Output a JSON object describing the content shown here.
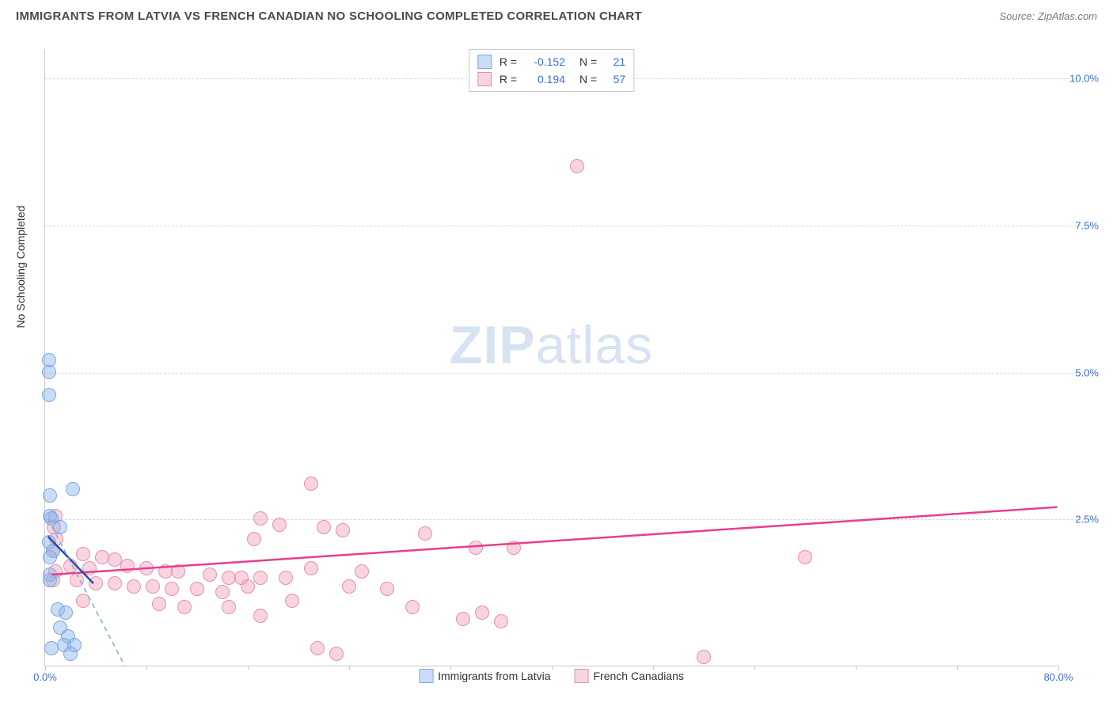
{
  "header": {
    "title": "IMMIGRANTS FROM LATVIA VS FRENCH CANADIAN NO SCHOOLING COMPLETED CORRELATION CHART",
    "source": "Source: ZipAtlas.com"
  },
  "watermark": {
    "part1": "ZIP",
    "part2": "atlas"
  },
  "chart": {
    "type": "scatter",
    "ylabel": "No Schooling Completed",
    "xlim": [
      0,
      80
    ],
    "ylim": [
      0,
      10.5
    ],
    "xtick_positions": [
      0,
      8,
      16,
      24,
      32,
      40,
      48,
      56,
      64,
      72,
      80
    ],
    "xtick_labels": {
      "0": "0.0%",
      "80": "80.0%"
    },
    "ytick_positions": [
      2.5,
      5.0,
      7.5,
      10.0
    ],
    "ytick_labels": [
      "2.5%",
      "5.0%",
      "7.5%",
      "10.0%"
    ],
    "grid_color": "#d8d8d8",
    "axis_color": "#c9c9c9",
    "background_color": "#ffffff",
    "tick_label_color": "#3b6fd6",
    "marker_radius": 9,
    "series": {
      "latvia": {
        "label": "Immigrants from Latvia",
        "fill": "rgba(140,180,235,0.45)",
        "stroke": "#7aa9e0",
        "line_color": "#1f4fb0",
        "dash_color": "#7aa9e0",
        "r_value": "-0.152",
        "n_value": "21",
        "trendline": {
          "x1": 0.2,
          "y1": 2.2,
          "x2": 3.8,
          "y2": 1.4
        },
        "dashline": {
          "x1": 0.2,
          "y1": 2.5,
          "x2": 7,
          "y2": -0.3
        },
        "points": [
          [
            0.3,
            5.2
          ],
          [
            0.3,
            5.0
          ],
          [
            0.3,
            4.6
          ],
          [
            2.2,
            3.0
          ],
          [
            0.4,
            2.9
          ],
          [
            0.4,
            2.55
          ],
          [
            0.5,
            2.5
          ],
          [
            1.2,
            2.35
          ],
          [
            0.3,
            2.1
          ],
          [
            0.6,
            1.95
          ],
          [
            0.4,
            1.85
          ],
          [
            0.4,
            1.55
          ],
          [
            0.35,
            1.45
          ],
          [
            1.0,
            0.95
          ],
          [
            1.6,
            0.9
          ],
          [
            1.2,
            0.65
          ],
          [
            1.8,
            0.5
          ],
          [
            1.5,
            0.35
          ],
          [
            2.3,
            0.35
          ],
          [
            2.0,
            0.2
          ],
          [
            0.5,
            0.3
          ]
        ]
      },
      "french": {
        "label": "French Canadians",
        "fill": "rgba(240,160,185,0.45)",
        "stroke": "#e78fae",
        "line_color": "#e83e8c",
        "r_value": "0.194",
        "n_value": "57",
        "trendline": {
          "x1": 0.5,
          "y1": 1.55,
          "x2": 80,
          "y2": 2.7
        },
        "points": [
          [
            42,
            8.5
          ],
          [
            21,
            3.1
          ],
          [
            0.8,
            2.55
          ],
          [
            17,
            2.5
          ],
          [
            18.5,
            2.4
          ],
          [
            22,
            2.35
          ],
          [
            23.5,
            2.3
          ],
          [
            30,
            2.25
          ],
          [
            16.5,
            2.15
          ],
          [
            0.9,
            2.15
          ],
          [
            0.6,
            1.95
          ],
          [
            3,
            1.9
          ],
          [
            4.5,
            1.85
          ],
          [
            5.5,
            1.8
          ],
          [
            34,
            2.0
          ],
          [
            60,
            1.85
          ],
          [
            2,
            1.7
          ],
          [
            3.5,
            1.65
          ],
          [
            6.5,
            1.7
          ],
          [
            8,
            1.65
          ],
          [
            9.5,
            1.6
          ],
          [
            10.5,
            1.6
          ],
          [
            13,
            1.55
          ],
          [
            14.5,
            1.5
          ],
          [
            15.5,
            1.5
          ],
          [
            17,
            1.5
          ],
          [
            19,
            1.5
          ],
          [
            21,
            1.65
          ],
          [
            25,
            1.6
          ],
          [
            2.5,
            1.45
          ],
          [
            4,
            1.4
          ],
          [
            5.5,
            1.4
          ],
          [
            7,
            1.35
          ],
          [
            8.5,
            1.35
          ],
          [
            10,
            1.3
          ],
          [
            12,
            1.3
          ],
          [
            14,
            1.25
          ],
          [
            16,
            1.35
          ],
          [
            24,
            1.35
          ],
          [
            27,
            1.3
          ],
          [
            37,
            2.0
          ],
          [
            3,
            1.1
          ],
          [
            9,
            1.05
          ],
          [
            11,
            1.0
          ],
          [
            14.5,
            1.0
          ],
          [
            17,
            0.85
          ],
          [
            19.5,
            1.1
          ],
          [
            29,
            1.0
          ],
          [
            33,
            0.8
          ],
          [
            34.5,
            0.9
          ],
          [
            36,
            0.75
          ],
          [
            21.5,
            0.3
          ],
          [
            23,
            0.2
          ],
          [
            52,
            0.15
          ],
          [
            0.7,
            2.35
          ],
          [
            0.8,
            1.6
          ],
          [
            0.6,
            1.45
          ]
        ]
      }
    }
  }
}
